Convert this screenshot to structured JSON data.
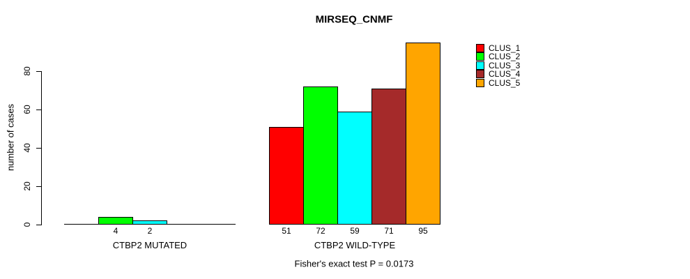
{
  "chart_data": {
    "type": "bar",
    "title": "MIRSEQ_CNMF",
    "ylabel": "number of cases",
    "yticks": [
      0,
      20,
      40,
      60,
      80
    ],
    "ylim": [
      0,
      95
    ],
    "grid": false,
    "legend_position": "right",
    "series": [
      {
        "name": "CLUS_1",
        "color": "#FF0000"
      },
      {
        "name": "CLUS_2",
        "color": "#00FF00"
      },
      {
        "name": "CLUS_3",
        "color": "#00FFFF"
      },
      {
        "name": "CLUS_4",
        "color": "#A52A2A"
      },
      {
        "name": "CLUS_5",
        "color": "#FFA500"
      }
    ],
    "groups": [
      {
        "label": "CTBP2 MUTATED",
        "values": [
          0,
          4,
          2,
          0,
          0
        ],
        "bar_labels": [
          "",
          "4",
          "2",
          "",
          ""
        ]
      },
      {
        "label": "CTBP2 WILD-TYPE",
        "values": [
          51,
          72,
          59,
          71,
          95
        ],
        "bar_labels": [
          "51",
          "72",
          "59",
          "71",
          "95"
        ]
      }
    ],
    "annotation": "Fisher's exact test P = 0.0173",
    "colors": {
      "background": "#FFFFFF",
      "axis": "#000000",
      "text": "#000000",
      "bar_border": "#000000"
    }
  }
}
